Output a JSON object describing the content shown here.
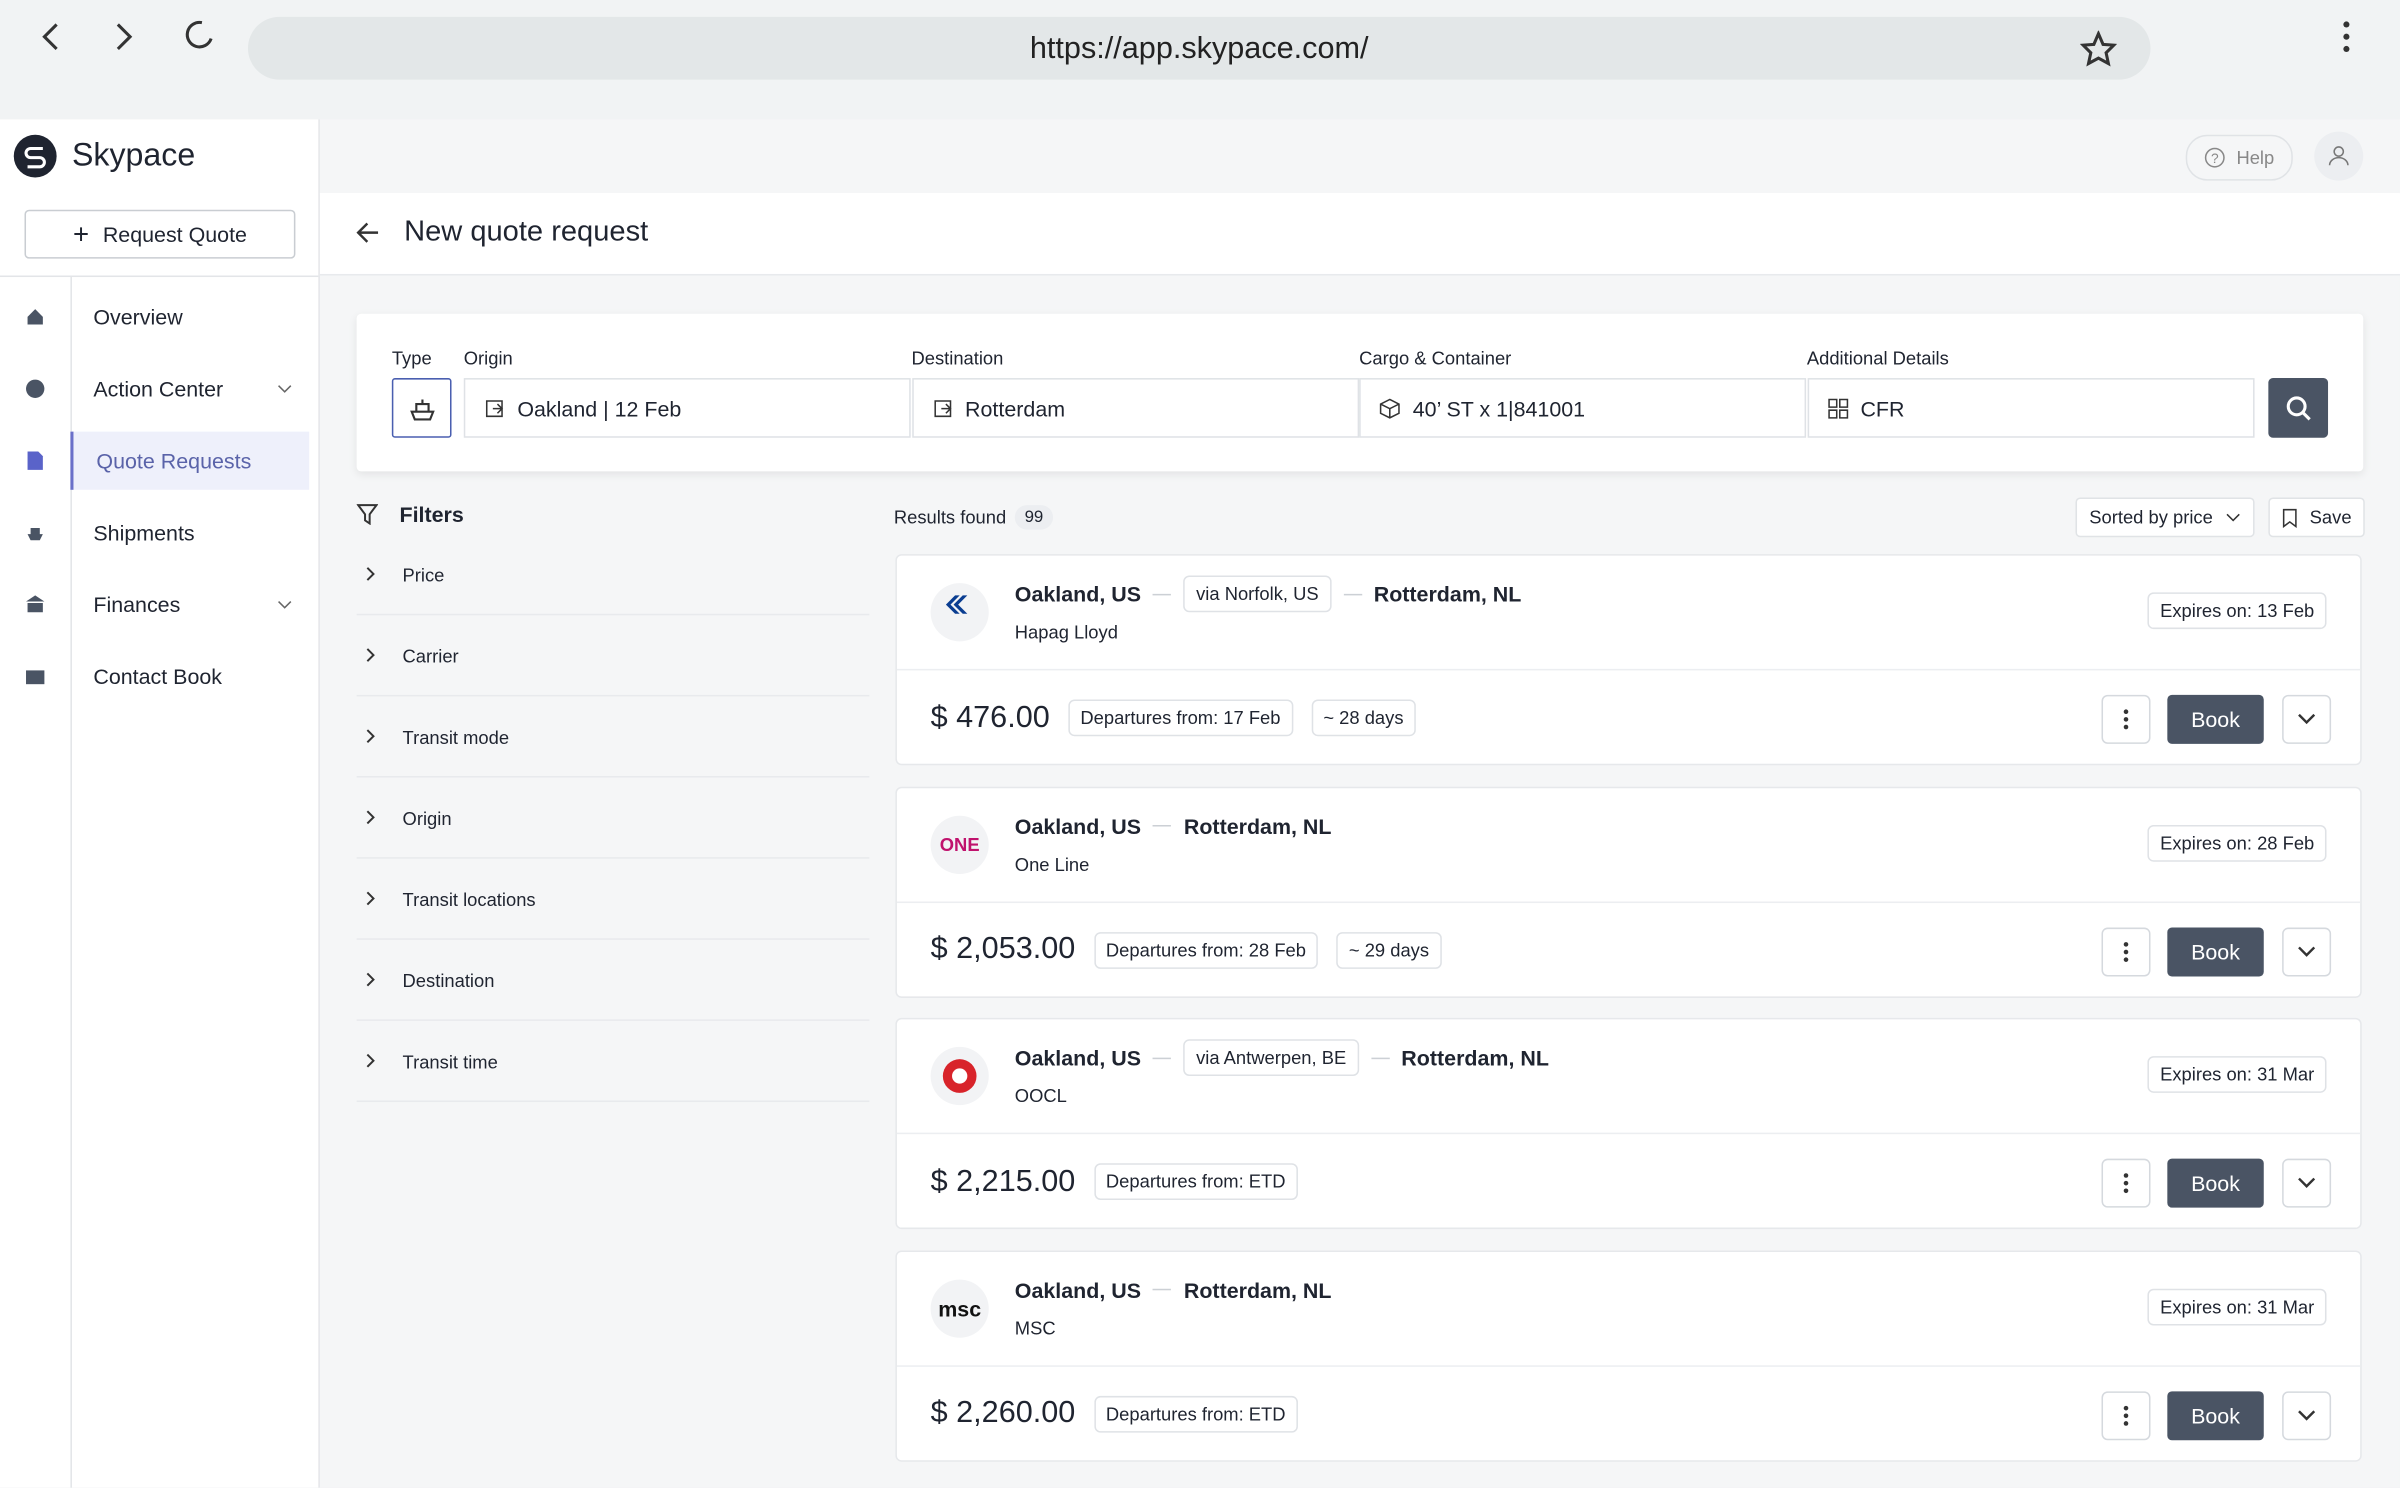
{
  "browser": {
    "url": "https://app.skypace.com/"
  },
  "sidebar": {
    "brand": "Skypace",
    "request_button": "Request Quote",
    "nav": [
      "Overview",
      "Action Center",
      "Quote Requests",
      "Shipments",
      "Finances",
      "Contact Book"
    ]
  },
  "header": {
    "help": "Help"
  },
  "page": {
    "title": "New quote request"
  },
  "search": {
    "type_label": "Type",
    "fields": [
      {
        "label": "Origin",
        "value": "Oakland | 12 Feb"
      },
      {
        "label": "Destination",
        "value": "Rotterdam"
      },
      {
        "label": "Cargo & Container",
        "value": "40’ ST x 1|841001"
      },
      {
        "label": "Additional Details",
        "value": "CFR"
      }
    ]
  },
  "filters": {
    "title": "Filters",
    "items": [
      "Price",
      "Carrier",
      "Transit mode",
      "Origin",
      "Transit locations",
      "Destination",
      "Transit time"
    ]
  },
  "results": {
    "label": "Results found",
    "count": 99,
    "sort": "Sorted by price",
    "save": "Save",
    "book": "Book",
    "quotes": [
      {
        "origin": "Oakland, US",
        "via": "via Norfolk, US",
        "destination": "Rotterdam, NL",
        "carrier": "Hapag Lloyd",
        "expires": "Expires on: 13 Feb",
        "price": "$ 476.00",
        "departures": "Departures from: 17 Feb",
        "transit": "~ 28 days"
      },
      {
        "origin": "Oakland, US",
        "destination": "Rotterdam, NL",
        "carrier": "One Line",
        "logo": "ONE",
        "expires": "Expires on: 28 Feb",
        "price": "$ 2,053.00",
        "departures": "Departures from: 28 Feb",
        "transit": "~ 29 days"
      },
      {
        "origin": "Oakland, US",
        "via": "via Antwerpen, BE",
        "destination": "Rotterdam, NL",
        "carrier": "OOCL",
        "expires": "Expires on: 31 Mar",
        "price": "$ 2,215.00",
        "departures": "Departures from: ETD"
      },
      {
        "origin": "Oakland, US",
        "destination": "Rotterdam, NL",
        "carrier": "MSC",
        "logo": "msc",
        "expires": "Expires on: 31 Mar",
        "price": "$ 2,260.00",
        "departures": "Departures from: ETD"
      }
    ]
  }
}
